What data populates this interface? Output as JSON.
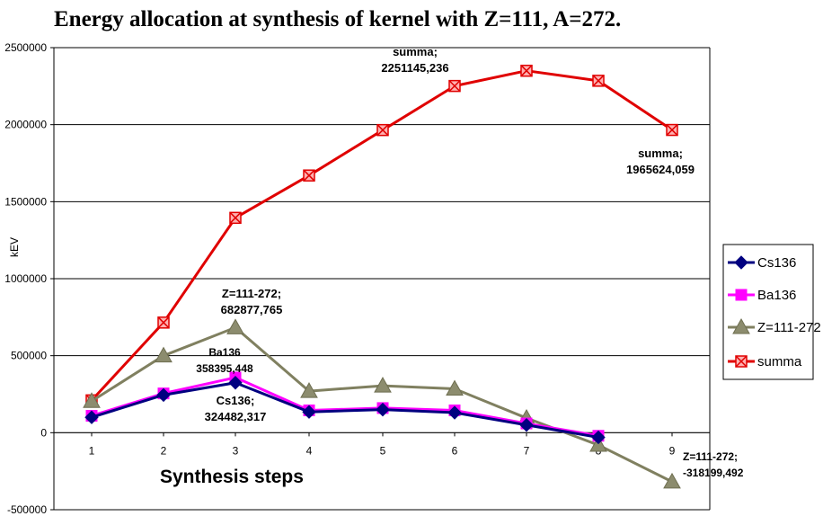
{
  "chart_data": {
    "type": "line",
    "title": "Energy allocation at synthesis of kernel with  Z=111, A=272.",
    "xlabel": "Synthesis steps",
    "ylabel": "kEV",
    "x": [
      1,
      2,
      3,
      4,
      5,
      6,
      7,
      8,
      9
    ],
    "ylim": [
      -500000,
      2500000
    ],
    "yticks": [
      -500000,
      0,
      500000,
      1000000,
      1500000,
      2000000,
      2500000
    ],
    "ytick_labels": [
      "-500000",
      "0",
      "500000",
      "1000000",
      "1500000",
      "2000000",
      "2500000"
    ],
    "xtick_labels": [
      "1",
      "2",
      "3",
      "4",
      "5",
      "6",
      "7",
      "8",
      "9"
    ],
    "grid": "horizontal",
    "legend_position": "right",
    "series": [
      {
        "name": "Cs136",
        "color": "#000080",
        "marker": "diamond",
        "values": [
          100000,
          245000,
          324482,
          135000,
          150000,
          130000,
          50000,
          -30000,
          null
        ]
      },
      {
        "name": "Ba136",
        "color": "#ff00ff",
        "marker": "square",
        "values": [
          110000,
          255000,
          358395,
          145000,
          160000,
          145000,
          60000,
          -20000,
          null
        ]
      },
      {
        "name": "Z=111-272",
        "color": "#808060",
        "marker": "triangle",
        "values": [
          205000,
          500000,
          682878,
          270000,
          305000,
          285000,
          95000,
          -80000,
          -318199
        ]
      },
      {
        "name": "summa",
        "color": "#e00000",
        "marker": "xsquare",
        "values": [
          210000,
          715000,
          1395000,
          1670000,
          1965000,
          2251145,
          2350000,
          2285000,
          1965624
        ]
      }
    ],
    "annotations": [
      {
        "lines": [
          "summa;",
          "2251145,236"
        ]
      },
      {
        "lines": [
          "summa;",
          "1965624,059"
        ]
      },
      {
        "lines": [
          "Z=111-272;",
          "682877,765"
        ]
      },
      {
        "lines": [
          "Ba136",
          "358395,448"
        ]
      },
      {
        "lines": [
          "Cs136;",
          "324482,317"
        ]
      },
      {
        "lines": [
          "Z=111-272;",
          "-318199,492"
        ]
      }
    ]
  }
}
